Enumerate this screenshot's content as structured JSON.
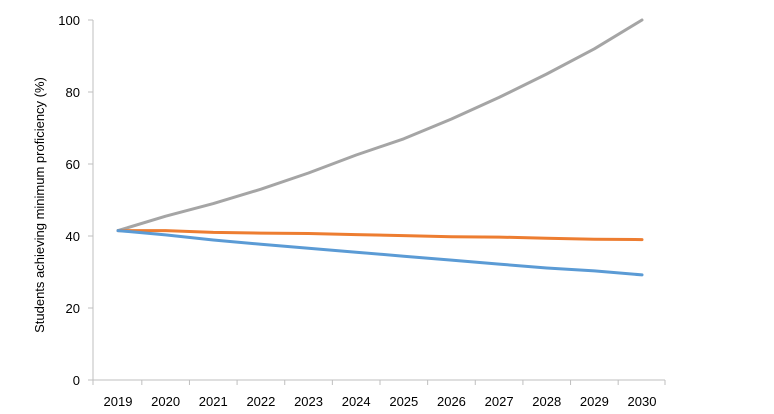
{
  "chart_data": {
    "type": "line",
    "title": "",
    "xlabel": "",
    "ylabel": "Students achieving minimum proficiency (%)",
    "x": [
      "2019",
      "2020",
      "2021",
      "2022",
      "2023",
      "2024",
      "2025",
      "2026",
      "2027",
      "2028",
      "2029",
      "2030"
    ],
    "ylim": [
      0,
      100
    ],
    "yticks": [
      0,
      20,
      40,
      60,
      80,
      100
    ],
    "grid": false,
    "legend": "none",
    "series": [
      {
        "color": "#a5a5a5",
        "values": [
          41.5,
          45.5,
          49.0,
          53.0,
          57.5,
          62.5,
          67.0,
          72.5,
          78.5,
          85.0,
          92.0,
          100.0
        ]
      },
      {
        "color": "#ed7d31",
        "values": [
          41.5,
          41.5,
          41.0,
          40.8,
          40.7,
          40.4,
          40.1,
          39.8,
          39.7,
          39.4,
          39.1,
          39.0
        ]
      },
      {
        "color": "#5b9bd5",
        "values": [
          41.5,
          40.3,
          38.9,
          37.7,
          36.6,
          35.5,
          34.4,
          33.3,
          32.2,
          31.1,
          30.3,
          29.2
        ]
      }
    ]
  }
}
